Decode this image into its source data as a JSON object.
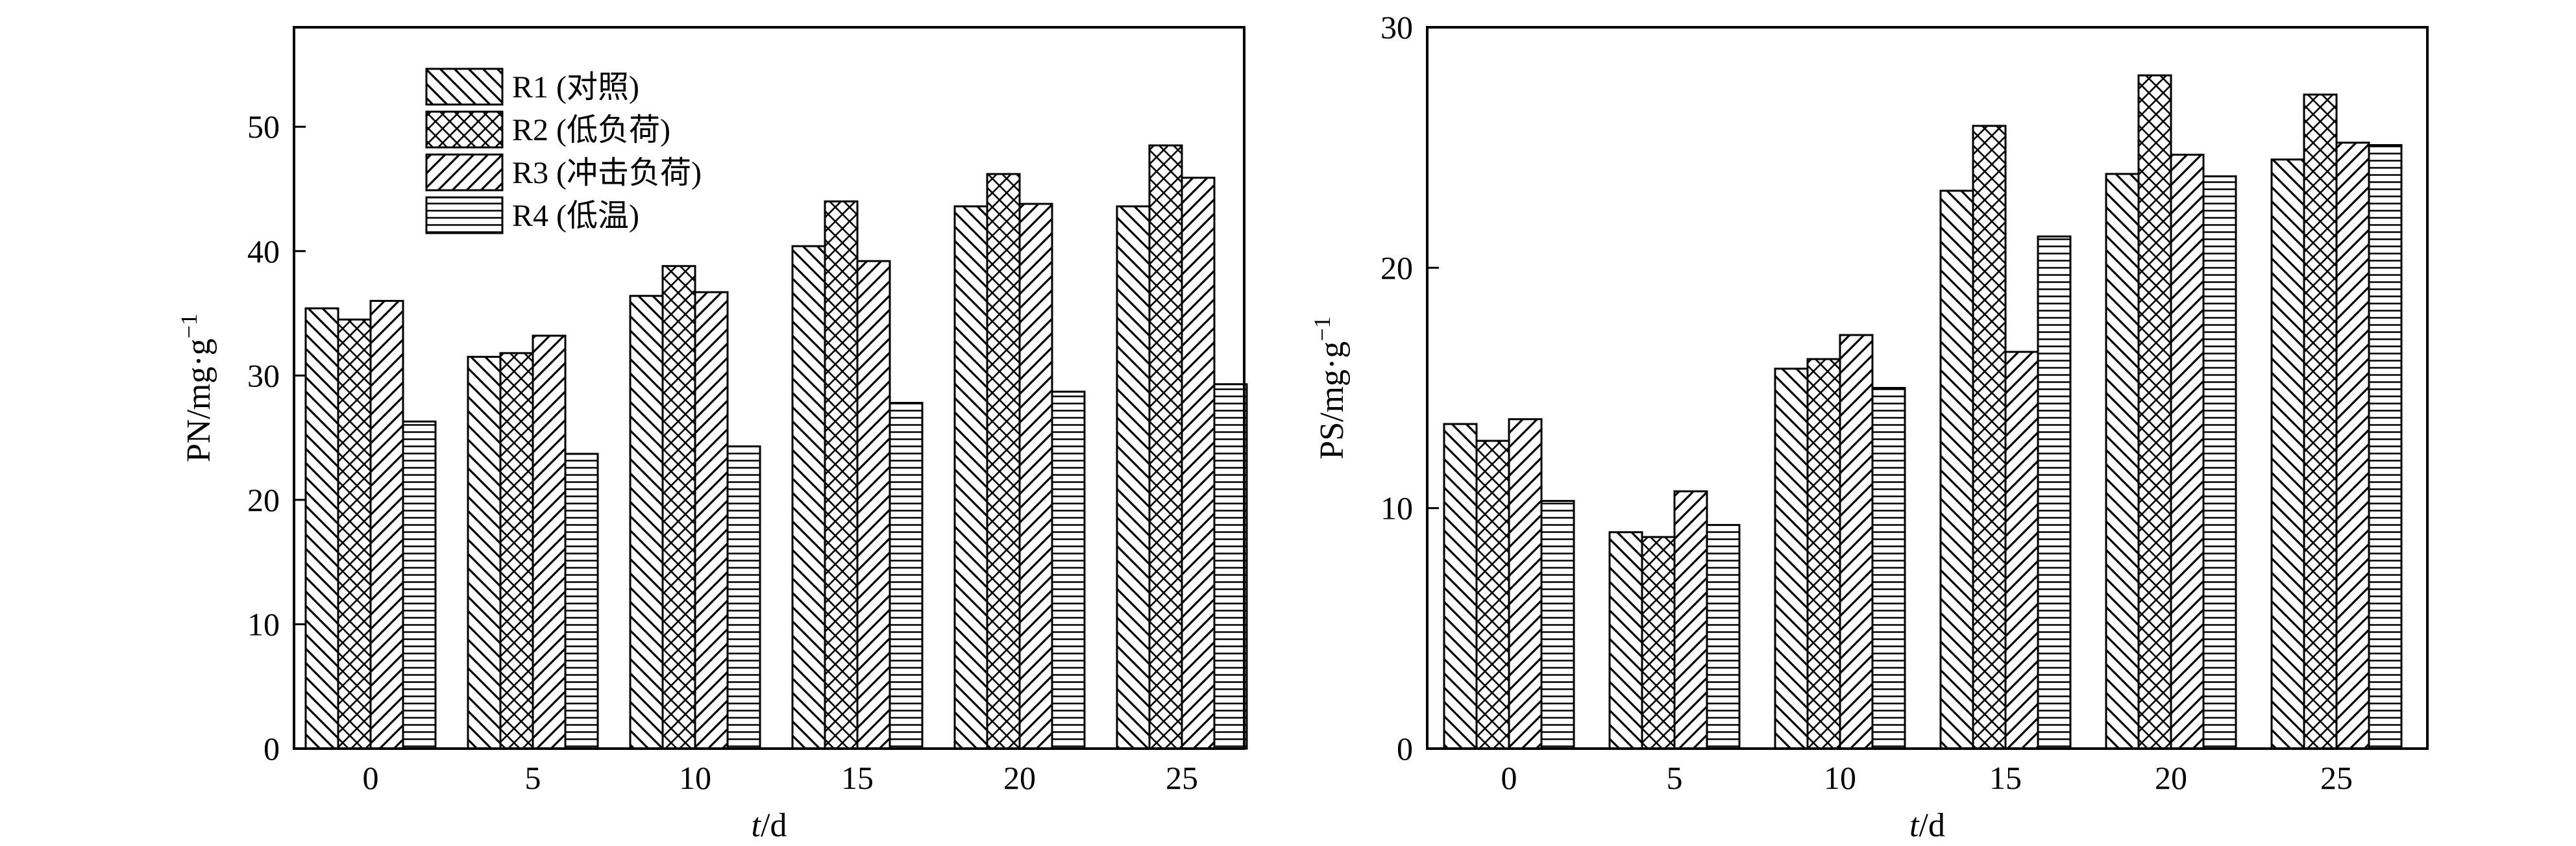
{
  "figure": {
    "legend": [
      {
        "key": "R1",
        "label": "R1 (对照)",
        "pattern": "back-diagonal"
      },
      {
        "key": "R2",
        "label": "R2 (低负荷)",
        "pattern": "crosshatch"
      },
      {
        "key": "R3",
        "label": "R3 (冲击负荷)",
        "pattern": "forward-diagonal"
      },
      {
        "key": "R4",
        "label": "R4 (低温)",
        "pattern": "horizontal"
      }
    ]
  },
  "chart_data": [
    {
      "type": "bar",
      "title": "",
      "xlabel": {
        "italic": "t",
        "rest": "/d"
      },
      "ylabel": {
        "base": "PN/mg·g",
        "sup": "−1"
      },
      "categories": [
        "0",
        "5",
        "10",
        "15",
        "20",
        "25"
      ],
      "ylim": [
        0,
        58
      ],
      "yticks": [
        0,
        10,
        20,
        30,
        40,
        50
      ],
      "grid": false,
      "legend_position": "top-left",
      "series": [
        {
          "name": "R1 (对照)",
          "values": [
            35.4,
            31.5,
            36.4,
            40.4,
            43.6,
            43.6
          ]
        },
        {
          "name": "R2 (低负荷)",
          "values": [
            34.5,
            31.8,
            38.8,
            44.0,
            46.2,
            48.5
          ]
        },
        {
          "name": "R3 (冲击负荷)",
          "values": [
            36.0,
            33.2,
            36.7,
            39.2,
            43.8,
            45.9
          ]
        },
        {
          "name": "R4 (低温)",
          "values": [
            26.3,
            23.7,
            24.3,
            27.8,
            28.7,
            29.3
          ]
        }
      ]
    },
    {
      "type": "bar",
      "title": "",
      "xlabel": {
        "italic": "t",
        "rest": "/d"
      },
      "ylabel": {
        "base": "PS/mg·g",
        "sup": "−1"
      },
      "categories": [
        "0",
        "5",
        "10",
        "15",
        "20",
        "25"
      ],
      "ylim": [
        0,
        30
      ],
      "yticks": [
        0,
        10,
        20,
        30
      ],
      "grid": false,
      "legend_position": "none",
      "series": [
        {
          "name": "R1 (对照)",
          "values": [
            13.5,
            9.0,
            15.8,
            23.2,
            23.9,
            24.5
          ]
        },
        {
          "name": "R2 (低负荷)",
          "values": [
            12.8,
            8.8,
            16.2,
            25.9,
            28.0,
            27.2
          ]
        },
        {
          "name": "R3 (冲击负荷)",
          "values": [
            13.7,
            10.7,
            17.2,
            16.5,
            24.7,
            25.2
          ]
        },
        {
          "name": "R4 (低温)",
          "values": [
            10.3,
            9.3,
            15.0,
            21.3,
            23.8,
            25.1
          ]
        }
      ]
    }
  ]
}
